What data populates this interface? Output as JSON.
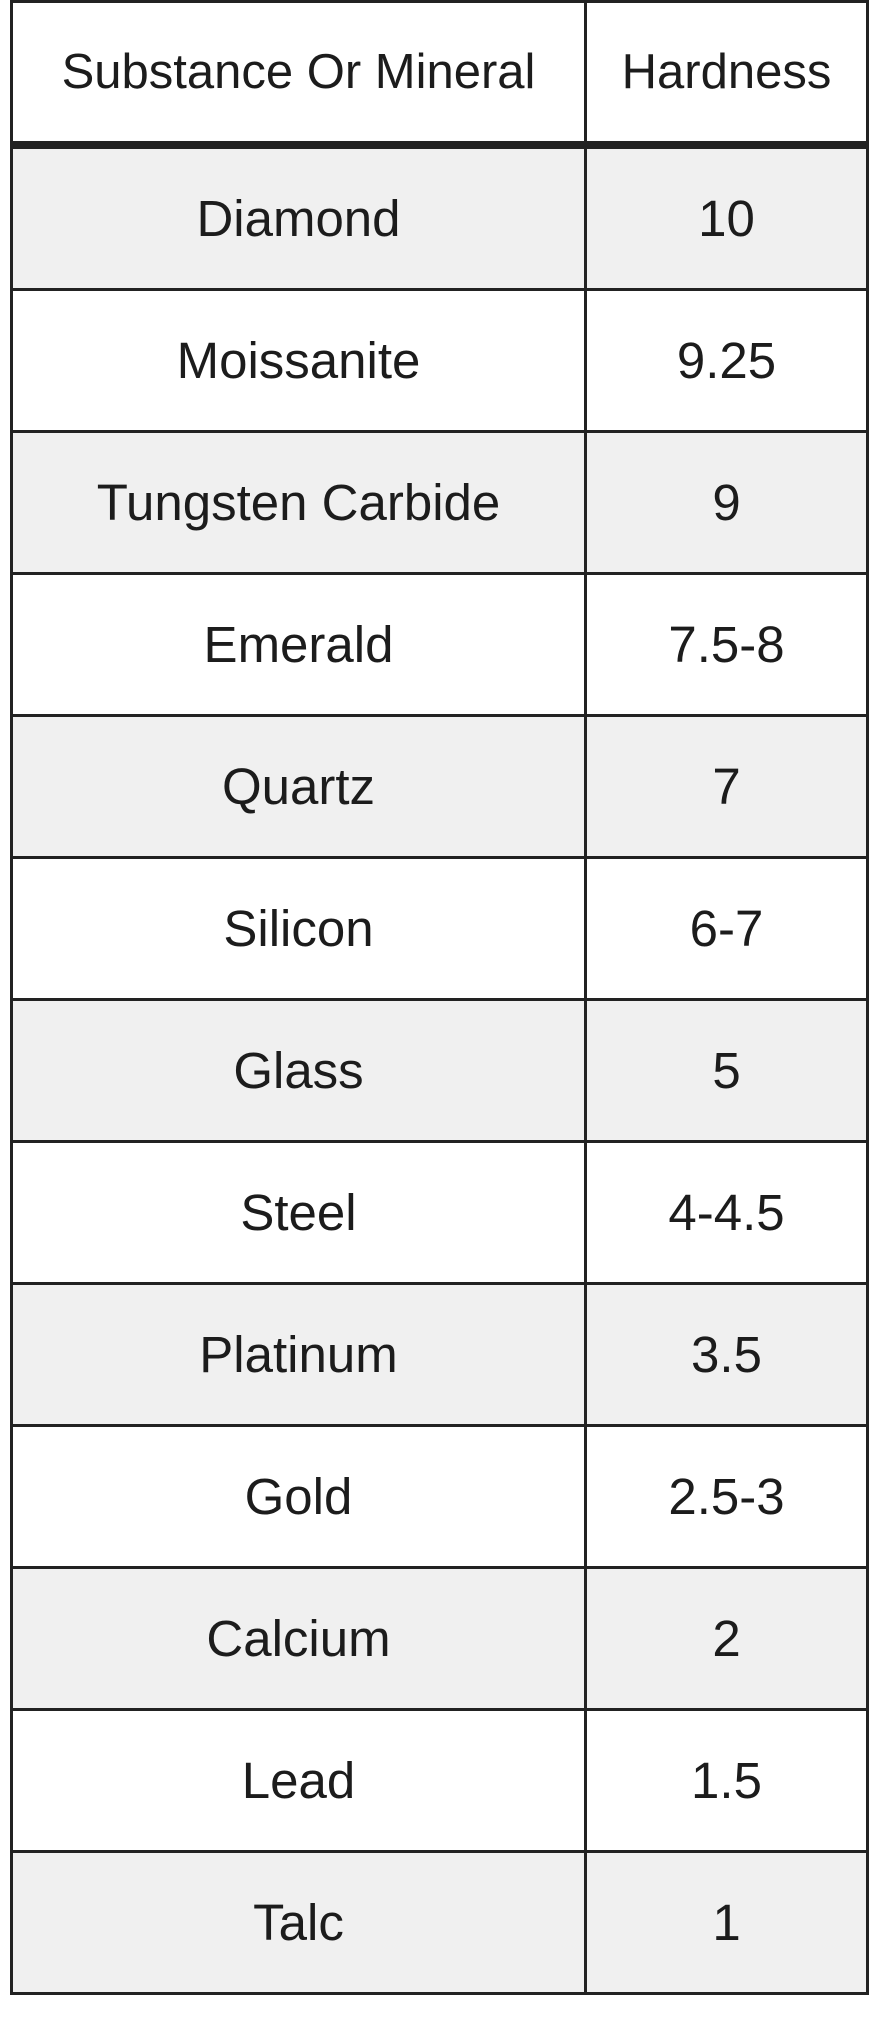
{
  "table": {
    "headers": [
      "Substance Or Mineral",
      "Hardness"
    ],
    "rows": [
      [
        "Diamond",
        "10"
      ],
      [
        "Moissanite",
        "9.25"
      ],
      [
        "Tungsten Carbide",
        "9"
      ],
      [
        "Emerald",
        "7.5-8"
      ],
      [
        "Quartz",
        "7"
      ],
      [
        "Silicon",
        "6-7"
      ],
      [
        "Glass",
        "5"
      ],
      [
        "Steel",
        "4-4.5"
      ],
      [
        "Platinum",
        "3.5"
      ],
      [
        "Gold",
        "2.5-3"
      ],
      [
        "Calcium",
        "2"
      ],
      [
        "Lead",
        "1.5"
      ],
      [
        "Talc",
        "1"
      ]
    ],
    "colors": {
      "stripe": "#f0f0f0",
      "border": "#222222"
    }
  }
}
